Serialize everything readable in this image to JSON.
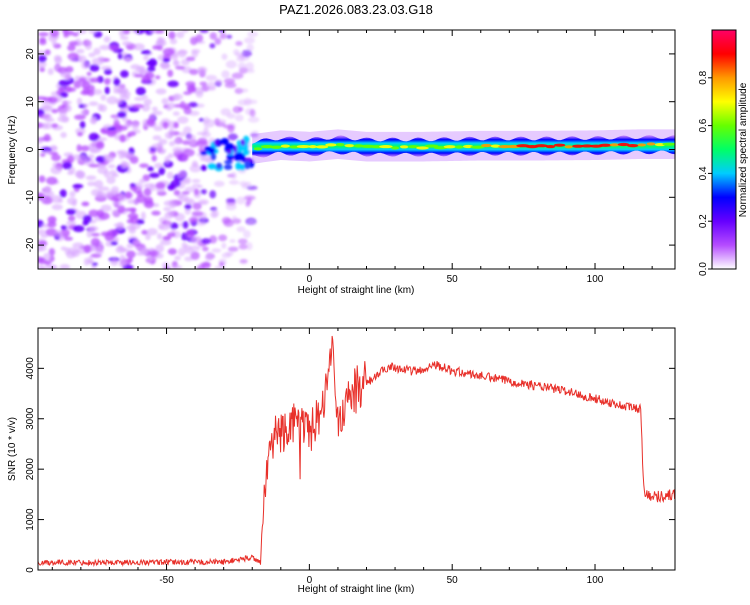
{
  "title": "PAZ1.2026.083.23.03.G18",
  "chart_data": [
    {
      "type": "heatmap",
      "id": "spectrogram",
      "xlabel": "Height of straight line (km)",
      "ylabel": "Frequency (Hz)",
      "xlim": [
        -95,
        128
      ],
      "ylim": [
        -25,
        25
      ],
      "xticks": [
        -50,
        0,
        50,
        100
      ],
      "yticks": [
        -20,
        -10,
        0,
        10,
        20
      ],
      "grid": false,
      "colorbar": {
        "label": "Normalized spectral amplitude",
        "range": [
          0,
          1
        ],
        "ticks": [
          0.0,
          0.2,
          0.4,
          0.6,
          0.8
        ],
        "tick_labels": [
          "0.0",
          "0.2",
          "0.4",
          "0.6",
          "0.8"
        ],
        "colors": [
          "#ffffff",
          "#b54cff",
          "#6600ff",
          "#0000ff",
          "#00ccff",
          "#00ff66",
          "#66ff00",
          "#ffff00",
          "#ff9900",
          "#ff0000",
          "#ff0066"
        ]
      },
      "noise_region_x": [
        -95,
        -22
      ],
      "signal_track": [
        {
          "x": -20,
          "f": 0.0,
          "amp": 0.5
        },
        {
          "x": -10,
          "f": 0.8,
          "amp": 0.6
        },
        {
          "x": 0,
          "f": 0.5,
          "amp": 0.6
        },
        {
          "x": 10,
          "f": 1.0,
          "amp": 0.62
        },
        {
          "x": 20,
          "f": 0.5,
          "amp": 0.58
        },
        {
          "x": 40,
          "f": 0.5,
          "amp": 0.6
        },
        {
          "x": 60,
          "f": 0.7,
          "amp": 0.68
        },
        {
          "x": 80,
          "f": 0.7,
          "amp": 0.85
        },
        {
          "x": 100,
          "f": 0.8,
          "amp": 0.82
        },
        {
          "x": 115,
          "f": 1.0,
          "amp": 0.8
        },
        {
          "x": 128,
          "f": 1.0,
          "amp": 0.55
        }
      ]
    },
    {
      "type": "line",
      "id": "snr",
      "xlabel": "Height of straight line (km)",
      "ylabel": "SNR (10 * v/v)",
      "xlim": [
        -95,
        128
      ],
      "ylim": [
        0,
        4800
      ],
      "xticks": [
        -50,
        0,
        50,
        100
      ],
      "yticks": [
        0,
        1000,
        2000,
        3000,
        4000
      ],
      "grid": false,
      "color": "#e8302a",
      "series": [
        {
          "name": "SNR",
          "x": [
            -95,
            -60,
            -30,
            -20,
            -17,
            -15,
            -12,
            -5,
            0,
            5,
            8,
            10,
            15,
            20,
            28,
            35,
            40,
            43,
            50,
            60,
            70,
            80,
            90,
            100,
            110,
            116,
            117,
            120,
            128
          ],
          "y": [
            150,
            150,
            160,
            250,
            150,
            2000,
            2700,
            2900,
            2800,
            3300,
            4700,
            2900,
            3500,
            3700,
            4050,
            3950,
            3950,
            4100,
            3950,
            3850,
            3750,
            3650,
            3550,
            3400,
            3250,
            3200,
            1600,
            1450,
            1500
          ]
        }
      ]
    }
  ]
}
